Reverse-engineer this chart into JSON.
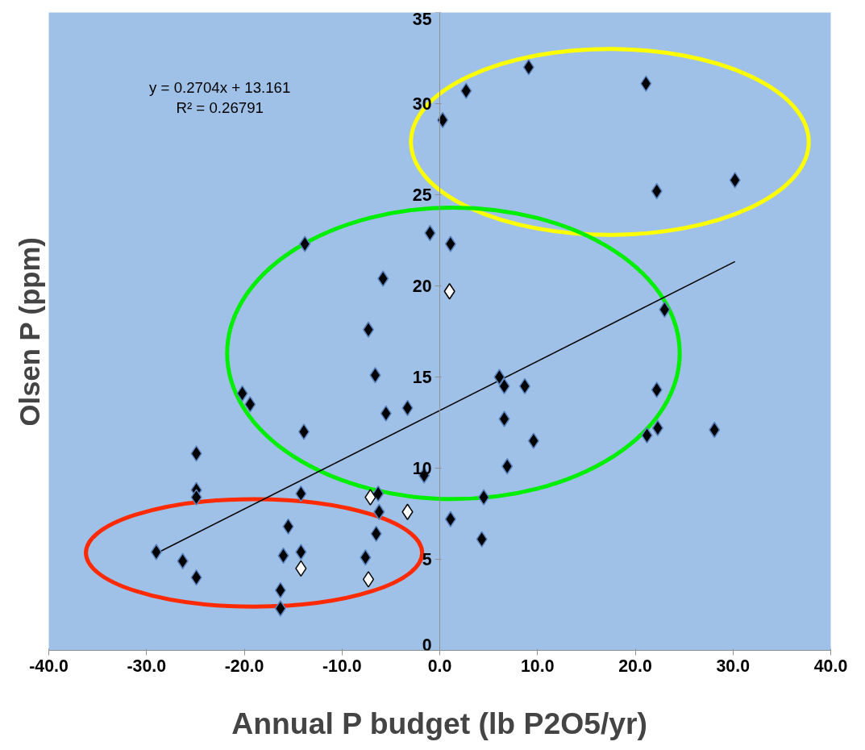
{
  "chart_data": {
    "type": "scatter",
    "xlabel": "Annual P budget (lb P2O5/yr)",
    "ylabel": "Olsen P (ppm)",
    "xlim": [
      -40,
      40
    ],
    "ylim": [
      0,
      35
    ],
    "xticks": [
      {
        "value": -40,
        "label": "-40.0"
      },
      {
        "value": -30,
        "label": "-30.0"
      },
      {
        "value": -20,
        "label": "-20.0"
      },
      {
        "value": -10,
        "label": "-10.0"
      },
      {
        "value": 0,
        "label": "0.0"
      },
      {
        "value": 10,
        "label": "10.0"
      },
      {
        "value": 20,
        "label": "20.0"
      },
      {
        "value": 30,
        "label": "30.0"
      },
      {
        "value": 40,
        "label": "40.0"
      }
    ],
    "yticks": [
      0,
      5,
      10,
      15,
      20,
      25,
      30,
      35
    ],
    "grid": false,
    "marker": "diamond",
    "annotations": [
      "y = 0.2704x + 13.161",
      "R² = 0.26791"
    ],
    "series": [
      {
        "color": "#000000",
        "x": [
          -29.0,
          -26.3,
          -24.9,
          -24.9,
          -24.9,
          -24.9,
          -20.2,
          -19.4,
          -13.8,
          -13.9,
          -14.2,
          -15.5,
          -14.2,
          -16.0,
          -16.3,
          -16.3,
          -5.8,
          -7.3,
          -6.6,
          -5.5,
          -3.3,
          -6.3,
          -6.2,
          -6.5,
          -7.6,
          -1.6,
          -1.0,
          1.1,
          0.3,
          2.7,
          9.1,
          21.1,
          22.2,
          30.2,
          23.0,
          6.1,
          6.6,
          8.7,
          6.6,
          9.6,
          6.9,
          22.2,
          22.3,
          21.2,
          28.1,
          4.5,
          4.3,
          1.1
        ],
        "values": [
          5.4,
          4.9,
          4.0,
          10.8,
          8.8,
          8.4,
          14.1,
          13.5,
          22.3,
          12.0,
          8.6,
          6.8,
          5.4,
          5.2,
          3.3,
          2.3,
          20.4,
          17.6,
          15.1,
          13.0,
          13.3,
          8.6,
          7.6,
          6.4,
          5.1,
          9.6,
          22.9,
          22.3,
          29.1,
          30.7,
          32.0,
          31.1,
          25.2,
          25.8,
          18.7,
          15.0,
          14.5,
          14.5,
          12.7,
          11.5,
          10.1,
          14.3,
          12.2,
          11.8,
          12.1,
          8.4,
          6.1,
          7.2
        ]
      },
      {
        "color": "#ffffff",
        "x": [
          1.0,
          -7.1,
          -3.3,
          -14.2,
          -7.3
        ],
        "values": [
          19.7,
          8.4,
          7.6,
          4.5,
          3.9
        ]
      },
      {
        "type": "line",
        "marker": "none",
        "color": "#000000",
        "x": [
          -29.0,
          30.2
        ],
        "values": [
          5.32,
          21.33
        ]
      }
    ]
  }
}
